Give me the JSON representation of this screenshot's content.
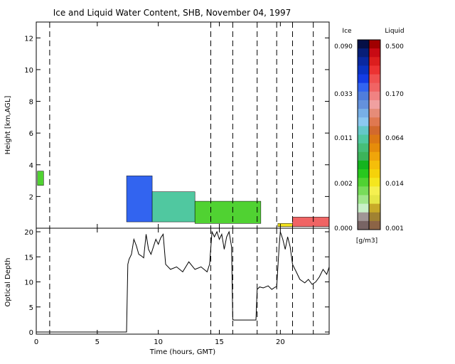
{
  "chart_data": [
    {
      "type": "heatmap",
      "title": "Ice and Liquid Water Content, SHB, November 04, 1997",
      "xlabel": "",
      "ylabel": "Height [km,AGL]",
      "xlim": [
        0,
        24
      ],
      "ylim": [
        0,
        13
      ],
      "x_ticks": [
        0,
        5,
        10,
        15,
        20
      ],
      "y_ticks": [
        2,
        4,
        6,
        8,
        10,
        12
      ],
      "grid": false,
      "event_markers_hours": [
        1.1,
        14.3,
        16.1,
        18.1,
        19.7,
        21.0,
        22.7
      ],
      "cloud_regions": [
        {
          "phase": "ice",
          "x_start": 0.1,
          "x_end": 0.6,
          "base_km": 2.7,
          "top_km": 3.6,
          "level": "0.002"
        },
        {
          "phase": "ice",
          "x_start": 7.4,
          "x_end": 9.5,
          "base_km": 0.4,
          "top_km": 3.3,
          "level": "0.033"
        },
        {
          "phase": "ice",
          "x_start": 9.5,
          "x_end": 13.0,
          "base_km": 0.4,
          "top_km": 2.3,
          "level": "0.011"
        },
        {
          "phase": "ice",
          "x_start": 13.0,
          "x_end": 18.4,
          "base_km": 0.3,
          "top_km": 1.7,
          "level": "0.002"
        },
        {
          "phase": "liquid",
          "x_start": 19.8,
          "x_end": 21.0,
          "base_km": 0.1,
          "top_km": 0.3,
          "level": "0.014"
        },
        {
          "phase": "liquid",
          "x_start": 21.0,
          "x_end": 24.0,
          "base_km": 0.1,
          "top_km": 0.7,
          "level": "0.170"
        }
      ]
    },
    {
      "type": "line",
      "title": "",
      "xlabel": "Time (hours, GMT)",
      "ylabel": "Optical Depth",
      "xlim": [
        0,
        24
      ],
      "ylim": [
        0,
        20
      ],
      "x_ticks": [
        0,
        5,
        10,
        15,
        20
      ],
      "y_ticks": [
        0,
        5,
        10,
        15,
        20
      ],
      "grid": false,
      "series": [
        {
          "x": [
            0.0,
            7.4,
            7.5,
            7.6,
            7.8,
            8.0,
            8.2,
            8.4,
            8.6,
            8.8,
            9.0,
            9.2,
            9.4,
            9.6,
            9.8,
            10.0,
            10.2,
            10.4,
            10.6,
            11.0,
            11.5,
            12.0,
            12.5,
            13.0,
            13.5,
            14.0,
            14.2,
            14.4,
            14.6,
            14.8,
            15.0,
            15.2,
            15.4,
            15.6,
            15.8,
            16.0,
            16.1,
            16.2,
            17.0,
            17.5,
            18.0,
            18.1,
            18.3,
            18.6,
            19.0,
            19.3,
            19.6,
            19.7,
            19.9,
            20.0,
            20.2,
            20.4,
            20.6,
            20.8,
            21.0,
            21.3,
            21.6,
            22.0,
            22.3,
            22.6,
            22.9,
            23.2,
            23.5,
            23.8,
            24.0
          ],
          "y": [
            0.0,
            0.0,
            13.5,
            14.5,
            15.5,
            18.5,
            17.2,
            15.5,
            15.2,
            14.8,
            19.5,
            16.5,
            15.5,
            17.0,
            18.5,
            17.5,
            18.8,
            19.5,
            13.5,
            12.5,
            13.0,
            12.0,
            14.0,
            12.5,
            13.0,
            12.0,
            13.5,
            20.0,
            19.0,
            20.0,
            18.5,
            19.5,
            16.5,
            19.0,
            20.0,
            17.0,
            2.5,
            2.4,
            2.4,
            2.4,
            2.4,
            8.5,
            9.0,
            8.8,
            9.2,
            8.5,
            9.0,
            9.0,
            17.0,
            20.0,
            18.5,
            16.5,
            19.0,
            17.0,
            13.5,
            12.0,
            10.5,
            9.8,
            10.5,
            9.5,
            10.0,
            11.0,
            12.5,
            11.5,
            13.0
          ]
        }
      ]
    }
  ],
  "colorbar": {
    "ice_title": "Ice",
    "liquid_title": "Liquid",
    "units": "[g/m3]",
    "ice_labels": [
      "0.090",
      "0.033",
      "0.011",
      "0.002",
      "0.000"
    ],
    "liquid_labels": [
      "0.500",
      "0.170",
      "0.064",
      "0.014",
      "0.001"
    ],
    "ice_colors": [
      "#050f46",
      "#081e78",
      "#0a28a0",
      "#0a32c3",
      "#143ce6",
      "#3264f0",
      "#507ddc",
      "#6491dc",
      "#78afe6",
      "#8cc8f0",
      "#64c8c8",
      "#50c8a0",
      "#46be78",
      "#3cb45a",
      "#14b41e",
      "#28c81e",
      "#50d232",
      "#78dc5a",
      "#a0e68c",
      "#c8f0c8",
      "#a09696",
      "#786464"
    ],
    "liquid_colors": [
      "#a00000",
      "#c80a14",
      "#dc1e1e",
      "#ec3232",
      "#f05050",
      "#f06464",
      "#f08282",
      "#f0a0a0",
      "#e68c78",
      "#e07850",
      "#d2692d",
      "#dc7814",
      "#e68c0a",
      "#f0a50a",
      "#f5be0a",
      "#f5d20a",
      "#f5e61e",
      "#f5f050",
      "#e6e646",
      "#c8aa28",
      "#a08232",
      "#8c6446"
    ]
  },
  "axis_labels": {
    "x_tick_labels": [
      "0",
      "5",
      "10",
      "15",
      "20"
    ],
    "top_y_tick_labels": [
      "2",
      "4",
      "6",
      "8",
      "10",
      "12"
    ],
    "bottom_y_tick_labels": [
      "0",
      "5",
      "10",
      "15",
      "20"
    ]
  }
}
